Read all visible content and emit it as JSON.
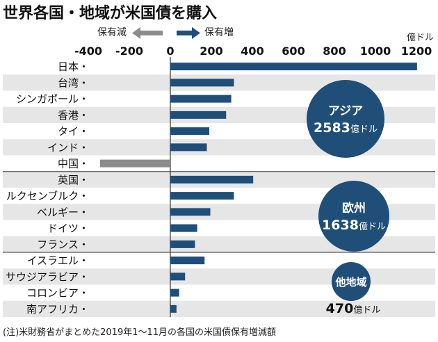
{
  "chart_data": {
    "type": "bar",
    "orientation": "horizontal",
    "title": "世界各国・地域が米国債を購入",
    "unit_label": "億ドル",
    "xlim": [
      -400,
      1250
    ],
    "xticks": [
      -400,
      -200,
      0,
      200,
      400,
      600,
      800,
      1000,
      1200
    ],
    "legend": {
      "decrease": "保有減",
      "increase": "保有増",
      "decrease_color": "#8c8c8c",
      "increase_color": "#1f4e79"
    },
    "categories": [
      "日本",
      "台湾",
      "シンガポール",
      "香港",
      "タイ",
      "インド",
      "中国",
      "英国",
      "ルクセンブルク",
      "ベルギー",
      "ドイツ",
      "フランス",
      "イスラエル",
      "サウジアラビア",
      "コロンビア",
      "南アフリカ"
    ],
    "values": [
      1203,
      310,
      297,
      272,
      190,
      178,
      -343,
      404,
      310,
      195,
      131,
      120,
      167,
      72,
      43,
      30
    ],
    "groups": [
      {
        "name": "アジア",
        "total": "2583",
        "unit": "億ドル",
        "start": 0,
        "end": 6
      },
      {
        "name": "欧州",
        "total": "1638",
        "unit": "億ドル",
        "start": 7,
        "end": 11
      },
      {
        "name": "他地域",
        "total": "470",
        "unit": "億ドル",
        "start": 12,
        "end": 15
      }
    ],
    "footnote": "(注)米財務省がまとめた2019年1〜11月の各国の米国債保有増減額"
  }
}
